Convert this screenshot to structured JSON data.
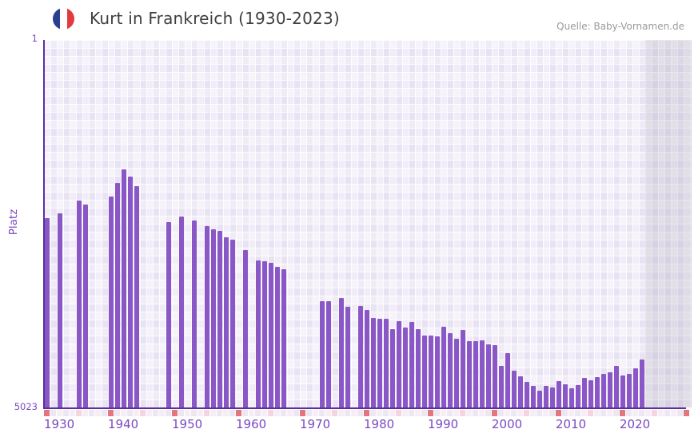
{
  "title": {
    "text": "Kurt in Frankreich (1930-2023)"
  },
  "source": {
    "text": "Quelle: Baby-Vornamen.de"
  },
  "y_axis": {
    "title": "Platz",
    "top_label": "1",
    "bottom_label": "5023"
  },
  "x_axis": {
    "tick_labels": [
      "1930",
      "1940",
      "1950",
      "1960",
      "1970",
      "1980",
      "1990",
      "2000",
      "2010",
      "2020"
    ]
  },
  "timeline_strip": {
    "start_year": 1930,
    "red_every_years": 10,
    "pink_every_years": 5
  },
  "colors": {
    "bar": "#8958c6",
    "axis_line": "#5b2f9e",
    "tick_label": "#7a49c0",
    "grid_light": "#f4f0fa",
    "grid_dark": "#ebe6f5",
    "marker_red": "#e2757e",
    "marker_pink": "#f3d4df",
    "strip_even": "#f5eef5",
    "strip_odd": "#ece7f3",
    "future_band": "rgba(128,122,150,0.17)",
    "title_text": "#3f3f3f",
    "source_text": "#9a9a9a",
    "flag_blue": "#2b3f90",
    "flag_white": "#ffffff",
    "flag_red": "#e23b3f"
  },
  "chart_data": {
    "type": "bar",
    "title": "Kurt in Frankreich (1930-2023)",
    "xlabel": "",
    "ylabel": "Platz",
    "y_inverted": true,
    "ylim": [
      1,
      5023
    ],
    "x_domain": [
      1930,
      2031
    ],
    "grid": true,
    "legend": false,
    "highlight_band_from_year": 2024,
    "points": [
      {
        "year": 1930,
        "rank": 2435
      },
      {
        "year": 1932,
        "rank": 2370
      },
      {
        "year": 1935,
        "rank": 2195
      },
      {
        "year": 1936,
        "rank": 2250
      },
      {
        "year": 1940,
        "rank": 2140
      },
      {
        "year": 1941,
        "rank": 1955
      },
      {
        "year": 1942,
        "rank": 1770
      },
      {
        "year": 1943,
        "rank": 1870
      },
      {
        "year": 1944,
        "rank": 2000
      },
      {
        "year": 1949,
        "rank": 2490
      },
      {
        "year": 1951,
        "rank": 2415
      },
      {
        "year": 1953,
        "rank": 2465
      },
      {
        "year": 1955,
        "rank": 2545
      },
      {
        "year": 1956,
        "rank": 2585
      },
      {
        "year": 1957,
        "rank": 2615
      },
      {
        "year": 1958,
        "rank": 2700
      },
      {
        "year": 1959,
        "rank": 2730
      },
      {
        "year": 1961,
        "rank": 2870
      },
      {
        "year": 1963,
        "rank": 3015
      },
      {
        "year": 1964,
        "rank": 3025
      },
      {
        "year": 1965,
        "rank": 3050
      },
      {
        "year": 1966,
        "rank": 3100
      },
      {
        "year": 1967,
        "rank": 3135
      },
      {
        "year": 1973,
        "rank": 3575
      },
      {
        "year": 1974,
        "rank": 3575
      },
      {
        "year": 1976,
        "rank": 3530
      },
      {
        "year": 1977,
        "rank": 3650
      },
      {
        "year": 1979,
        "rank": 3640
      },
      {
        "year": 1980,
        "rank": 3690
      },
      {
        "year": 1981,
        "rank": 3800
      },
      {
        "year": 1982,
        "rank": 3815
      },
      {
        "year": 1983,
        "rank": 3810
      },
      {
        "year": 1984,
        "rank": 3955
      },
      {
        "year": 1985,
        "rank": 3845
      },
      {
        "year": 1986,
        "rank": 3930
      },
      {
        "year": 1987,
        "rank": 3855
      },
      {
        "year": 1988,
        "rank": 3955
      },
      {
        "year": 1989,
        "rank": 4040
      },
      {
        "year": 1990,
        "rank": 4040
      },
      {
        "year": 1991,
        "rank": 4050
      },
      {
        "year": 1992,
        "rank": 3915
      },
      {
        "year": 1993,
        "rank": 4005
      },
      {
        "year": 1994,
        "rank": 4085
      },
      {
        "year": 1995,
        "rank": 3965
      },
      {
        "year": 1996,
        "rank": 4115
      },
      {
        "year": 1997,
        "rank": 4115
      },
      {
        "year": 1998,
        "rank": 4105
      },
      {
        "year": 1999,
        "rank": 4160
      },
      {
        "year": 2000,
        "rank": 4175
      },
      {
        "year": 2001,
        "rank": 4455
      },
      {
        "year": 2002,
        "rank": 4285
      },
      {
        "year": 2003,
        "rank": 4520
      },
      {
        "year": 2004,
        "rank": 4595
      },
      {
        "year": 2005,
        "rank": 4675
      },
      {
        "year": 2006,
        "rank": 4730
      },
      {
        "year": 2007,
        "rank": 4790
      },
      {
        "year": 2008,
        "rank": 4730
      },
      {
        "year": 2009,
        "rank": 4745
      },
      {
        "year": 2010,
        "rank": 4665
      },
      {
        "year": 2011,
        "rank": 4705
      },
      {
        "year": 2012,
        "rank": 4760
      },
      {
        "year": 2013,
        "rank": 4715
      },
      {
        "year": 2014,
        "rank": 4620
      },
      {
        "year": 2015,
        "rank": 4650
      },
      {
        "year": 2016,
        "rank": 4605
      },
      {
        "year": 2017,
        "rank": 4565
      },
      {
        "year": 2018,
        "rank": 4540
      },
      {
        "year": 2019,
        "rank": 4460
      },
      {
        "year": 2020,
        "rank": 4585
      },
      {
        "year": 2021,
        "rank": 4565
      },
      {
        "year": 2022,
        "rank": 4490
      },
      {
        "year": 2023,
        "rank": 4370
      }
    ]
  }
}
